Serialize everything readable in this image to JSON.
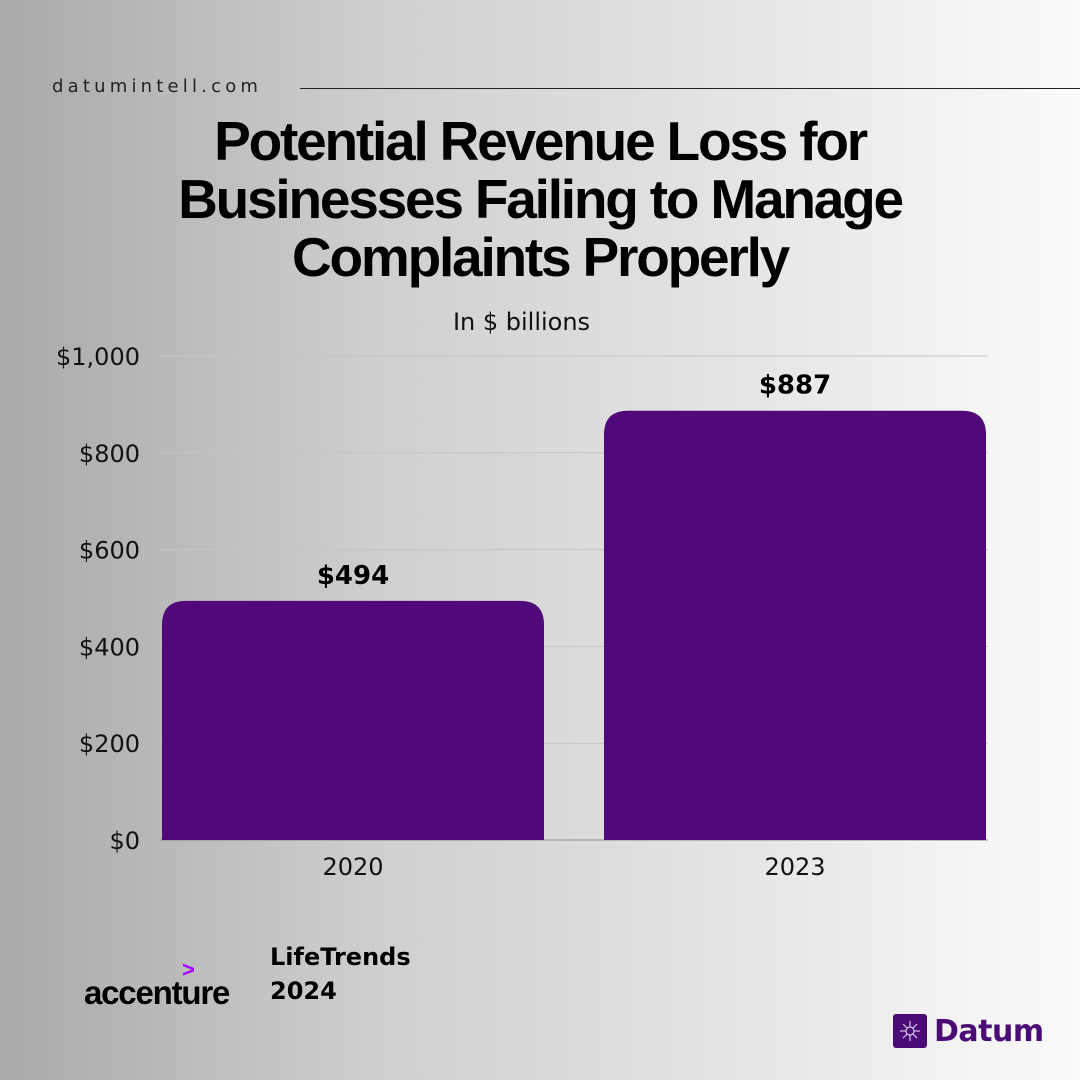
{
  "header": {
    "site": "datumintell.com"
  },
  "chart_data": {
    "type": "bar",
    "title": "Potential Revenue Loss for Businesses Failing to Manage Complaints Properly",
    "title_lines": [
      "Potential Revenue Loss for",
      "Businesses Failing to Manage",
      "Complaints Properly"
    ],
    "subtitle": "In $ billions",
    "categories": [
      "2020",
      "2023"
    ],
    "values": [
      494,
      887
    ],
    "data_labels": [
      "$494",
      "$887"
    ],
    "yticks": [
      0,
      200,
      400,
      600,
      800,
      1000
    ],
    "ytick_labels": [
      "$0",
      "$200",
      "$400",
      "$600",
      "$800",
      "$1,000"
    ],
    "ylim": [
      0,
      1000
    ],
    "xlabel": "",
    "ylabel": "",
    "grid": true,
    "bar_color": "#50087a"
  },
  "source": {
    "logo_mark": ">",
    "logo_text": "accenture",
    "line1": "LifeTrends",
    "line2": "2024"
  },
  "brand": {
    "name": "Datum",
    "icon": "datum-logo-icon",
    "color": "#4b0b77"
  }
}
